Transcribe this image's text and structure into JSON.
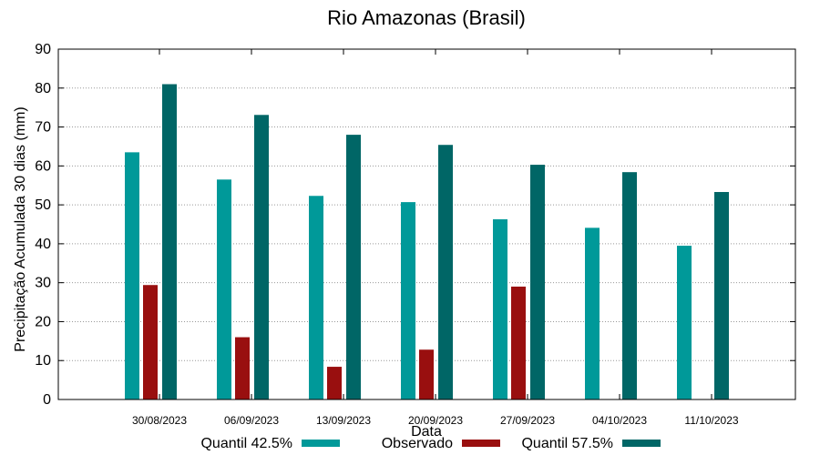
{
  "chart_data": {
    "type": "bar",
    "title": "Rio Amazonas (Brasil)",
    "xlabel": "Data",
    "ylabel": "Precipitação Acumulada 30 dias (mm)",
    "ylim": [
      0,
      90
    ],
    "yticks": [
      0,
      10,
      20,
      30,
      40,
      50,
      60,
      70,
      80,
      90
    ],
    "grid": true,
    "legend_position": "bottom",
    "categories": [
      "30/08/2023",
      "06/09/2023",
      "13/09/2023",
      "20/09/2023",
      "27/09/2023",
      "04/10/2023",
      "11/10/2023"
    ],
    "series": [
      {
        "name": "Quantil 42.5%",
        "color": "#009999",
        "values": [
          63.5,
          56.5,
          52.3,
          50.7,
          46.3,
          44.1,
          39.5
        ]
      },
      {
        "name": "Observado",
        "color": "#990f0f",
        "values": [
          29.4,
          16.0,
          8.4,
          12.8,
          29.0,
          null,
          null
        ]
      },
      {
        "name": "Quantil 57.5%",
        "color": "#006666",
        "values": [
          81.0,
          73.1,
          68.0,
          65.4,
          60.3,
          58.4,
          53.3
        ]
      }
    ]
  }
}
